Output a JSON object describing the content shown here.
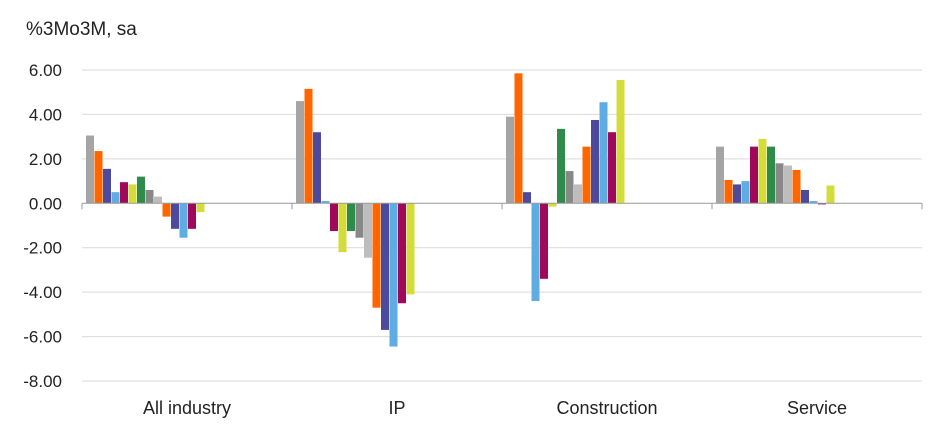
{
  "chart_data": {
    "type": "bar",
    "ylabel": "%3Mo3M, sa",
    "ylim": [
      -8,
      6
    ],
    "yticks": [
      "6.00",
      "4.00",
      "2.00",
      "0.00",
      "-2.00",
      "-4.00",
      "-6.00",
      "-8.00"
    ],
    "grid": true,
    "legend": "none",
    "categories": [
      "All industry",
      "IP",
      "Construction",
      "Service"
    ],
    "series_colors": [
      "#a5a5a5",
      "#ff6600",
      "#4b4a9c",
      "#5dade2",
      "#a0085c",
      "#d4dc3c",
      "#2e8b4a",
      "#888888",
      "#bdbdbd",
      "#ff6600",
      "#4b4a9c",
      "#5dade2",
      "#a0085c",
      "#d4dc3c"
    ],
    "series": [
      {
        "values": [
          3.05,
          4.6,
          3.9,
          2.55
        ]
      },
      {
        "values": [
          2.35,
          5.15,
          5.85,
          1.05
        ]
      },
      {
        "values": [
          1.55,
          3.2,
          0.5,
          0.85
        ]
      },
      {
        "values": [
          0.5,
          0.1,
          -4.4,
          1.0
        ]
      },
      {
        "values": [
          0.95,
          -1.25,
          -3.4,
          2.55
        ]
      },
      {
        "values": [
          0.85,
          -2.2,
          -0.15,
          2.9
        ]
      },
      {
        "values": [
          1.2,
          -1.25,
          3.35,
          2.55
        ]
      },
      {
        "values": [
          0.6,
          -1.55,
          1.45,
          1.8
        ]
      },
      {
        "values": [
          0.3,
          -2.45,
          0.85,
          1.7
        ]
      },
      {
        "values": [
          -0.6,
          -4.7,
          2.55,
          1.5
        ]
      },
      {
        "values": [
          -1.15,
          -5.7,
          3.75,
          0.6
        ]
      },
      {
        "values": [
          -1.55,
          -6.45,
          4.55,
          0.1
        ]
      },
      {
        "values": [
          -1.15,
          -4.5,
          3.2,
          -0.05
        ]
      },
      {
        "values": [
          -0.4,
          -4.1,
          5.55,
          0.8
        ]
      }
    ]
  }
}
